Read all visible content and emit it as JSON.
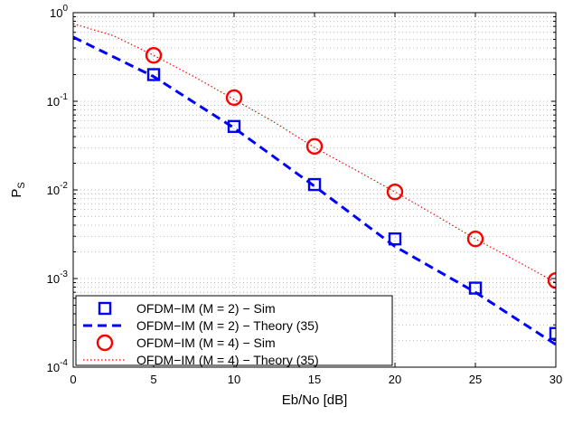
{
  "chart_data": {
    "type": "line",
    "xlabel": "Eb/No [dB]",
    "ylabel": {
      "base": "P",
      "sub": "S"
    },
    "xlim": [
      0,
      30
    ],
    "ylim": [
      0.0001,
      1
    ],
    "yscale": "log",
    "grid": true,
    "x_ticks": [
      0,
      5,
      10,
      15,
      20,
      25,
      30
    ],
    "x_tick_labels": [
      "0",
      "5",
      "10",
      "15",
      "20",
      "25",
      "30"
    ],
    "y_ticks": [
      0.0001,
      0.001,
      0.01,
      0.1,
      1
    ],
    "y_tick_labels": [
      {
        "base": "10",
        "exp": "-4"
      },
      {
        "base": "10",
        "exp": "-3"
      },
      {
        "base": "10",
        "exp": "-2"
      },
      {
        "base": "10",
        "exp": "-1"
      },
      {
        "base": "10",
        "exp": "0"
      }
    ],
    "legend_position": "bottom-left",
    "series": [
      {
        "name": "OFDM−IM (M = 2) − Sim",
        "style": "markers",
        "marker": "square",
        "color": "#0000ff",
        "x": [
          5,
          10,
          15,
          20,
          25,
          30
        ],
        "y": [
          0.2,
          0.052,
          0.0115,
          0.0028,
          0.00078,
          0.00024
        ]
      },
      {
        "name": "OFDM−IM (M = 2) − Theory (35)",
        "style": "dashed",
        "color": "#0000ff",
        "x": [
          0,
          5,
          10,
          15,
          20,
          25,
          30
        ],
        "y": [
          0.53,
          0.19,
          0.05,
          0.011,
          0.0023,
          0.0007,
          0.00018
        ]
      },
      {
        "name": "OFDM−IM (M = 4) − Sim",
        "style": "markers",
        "marker": "circle",
        "color": "#ff0000",
        "x": [
          5,
          10,
          15,
          20,
          25,
          30
        ],
        "y": [
          0.33,
          0.11,
          0.031,
          0.0095,
          0.0028,
          0.00095
        ]
      },
      {
        "name": "OFDM−IM (M = 4) − Theory (35)",
        "style": "dotted",
        "color": "#ff0000",
        "x": [
          0,
          2.5,
          5,
          7.5,
          10,
          12.5,
          15,
          17.5,
          20,
          22.5,
          25,
          27.5,
          30
        ],
        "y": [
          0.75,
          0.55,
          0.33,
          0.19,
          0.105,
          0.058,
          0.03,
          0.017,
          0.0095,
          0.0052,
          0.0028,
          0.0016,
          0.0009
        ]
      }
    ]
  }
}
